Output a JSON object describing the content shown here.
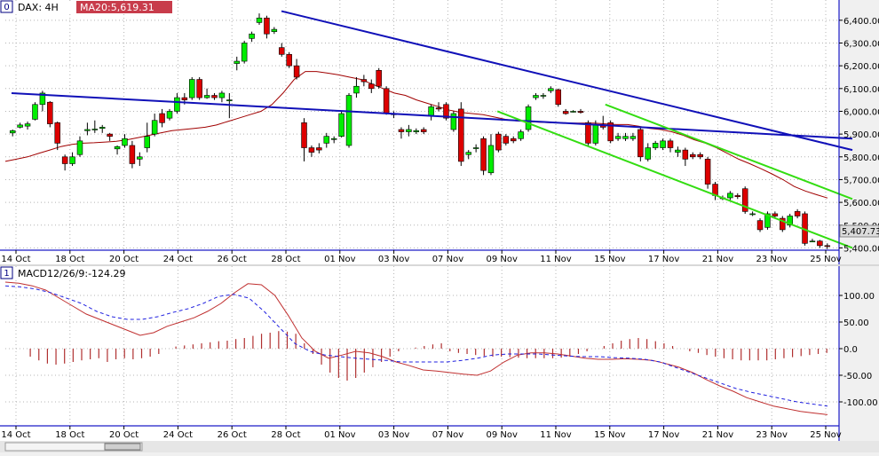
{
  "colors": {
    "background": "#ffffff",
    "frame": "#1c1cc8",
    "grid": "#b4b4b4",
    "bull": "#00ee00",
    "bear": "#dd0000",
    "wick": "#000000",
    "ma_line": "#a00000",
    "channel_blue": "#1010b8",
    "channel_green": "#33dd11",
    "macd_line": "#c03030",
    "signal_line": "#2020e0",
    "histogram": "#b03030",
    "label_badge": "#c83c4b",
    "last_price_badge": "#dcdcdc"
  },
  "price_pane": {
    "index": "0",
    "symbol_label": "DAX: 4H",
    "indicator_label": "MA20:5,619.31",
    "last_price_label": "5,407.73",
    "y_ticks": [
      "6,400.00",
      "6,300.00",
      "6,200.00",
      "6,100.00",
      "6,000.00",
      "5,900.00",
      "5,800.00",
      "5,700.00",
      "5,600.00",
      "5,500.00",
      "5,400.00"
    ]
  },
  "macd_pane": {
    "index": "1",
    "indicator_label": "MACD12/26/9:-124.29",
    "y_ticks": [
      "100.00",
      "50.00",
      "0.0",
      "-50.00",
      "-100.00"
    ]
  },
  "x_ticks": [
    "14 Oct",
    "18 Oct",
    "20 Oct",
    "24 Oct",
    "26 Oct",
    "28 Oct",
    "01 Nov",
    "03 Nov",
    "07 Nov",
    "09 Nov",
    "11 Nov",
    "15 Nov",
    "17 Nov",
    "21 Nov",
    "23 Nov",
    "25 Nov"
  ],
  "chart_data": [
    {
      "type": "candlestick",
      "title": "DAX: 4H",
      "indicator": "MA20:5,619.31",
      "x_ticks": [
        "14 Oct",
        "18 Oct",
        "20 Oct",
        "24 Oct",
        "26 Oct",
        "28 Oct",
        "01 Nov",
        "03 Nov",
        "07 Nov",
        "09 Nov",
        "11 Nov",
        "15 Nov",
        "17 Nov",
        "21 Nov",
        "23 Nov",
        "25 Nov"
      ],
      "ylim": [
        5390,
        6450
      ],
      "grid": true,
      "last_price": 5407.73,
      "candles": [
        [
          5905,
          5915,
          5890,
          5920
        ],
        [
          5930,
          5940,
          5925,
          5950
        ],
        [
          5935,
          5945,
          5920,
          5955
        ],
        [
          5965,
          6030,
          5960,
          6040
        ],
        [
          6030,
          6080,
          6000,
          6090
        ],
        [
          6040,
          5945,
          5930,
          6045
        ],
        [
          5950,
          5860,
          5830,
          5955
        ],
        [
          5800,
          5770,
          5740,
          5810
        ],
        [
          5770,
          5800,
          5760,
          5820
        ],
        [
          5810,
          5870,
          5800,
          5890
        ],
        [
          5915,
          5920,
          5895,
          5950
        ],
        [
          5920,
          5922,
          5905,
          5960
        ],
        [
          5925,
          5930,
          5905,
          5940
        ],
        [
          5900,
          5890,
          5870,
          5905
        ],
        [
          5835,
          5845,
          5810,
          5850
        ],
        [
          5850,
          5880,
          5840,
          5900
        ],
        [
          5850,
          5770,
          5750,
          5870
        ],
        [
          5790,
          5800,
          5760,
          5820
        ],
        [
          5840,
          5890,
          5820,
          5950
        ],
        [
          5900,
          5960,
          5890,
          5990
        ],
        [
          5990,
          5950,
          5930,
          6010
        ],
        [
          5970,
          6000,
          5960,
          6010
        ],
        [
          6000,
          6060,
          5990,
          6080
        ],
        [
          6060,
          6050,
          6030,
          6080
        ],
        [
          6060,
          6140,
          6050,
          6150
        ],
        [
          6140,
          6060,
          6050,
          6150
        ],
        [
          6060,
          6070,
          6055,
          6100
        ],
        [
          6070,
          6060,
          6050,
          6080
        ],
        [
          6060,
          6080,
          6040,
          6090
        ],
        [
          6050,
          6050,
          5970,
          6080
        ],
        [
          6210,
          6220,
          6180,
          6240
        ],
        [
          6220,
          6300,
          6210,
          6310
        ],
        [
          6320,
          6340,
          6305,
          6350
        ],
        [
          6390,
          6410,
          6380,
          6430
        ],
        [
          6410,
          6340,
          6320,
          6420
        ],
        [
          6350,
          6360,
          6340,
          6370
        ],
        [
          6280,
          6250,
          6240,
          6300
        ],
        [
          6250,
          6200,
          6190,
          6260
        ],
        [
          6200,
          6150,
          6140,
          6230
        ],
        [
          5950,
          5840,
          5780,
          5970
        ],
        [
          5840,
          5820,
          5800,
          5850
        ],
        [
          5840,
          5830,
          5815,
          5860
        ],
        [
          5860,
          5890,
          5840,
          5905
        ],
        [
          5880,
          5880,
          5860,
          5890
        ],
        [
          5890,
          5990,
          5885,
          6000
        ],
        [
          5850,
          6070,
          5840,
          6080
        ],
        [
          6080,
          6110,
          6060,
          6150
        ],
        [
          6140,
          6130,
          6110,
          6160
        ],
        [
          6120,
          6100,
          6080,
          6140
        ],
        [
          6180,
          6110,
          6100,
          6190
        ],
        [
          6100,
          5990,
          5985,
          6110
        ],
        [
          5985,
          5990,
          5970,
          6000
        ],
        [
          5920,
          5910,
          5880,
          5930
        ],
        [
          5910,
          5920,
          5890,
          5940
        ],
        [
          5910,
          5915,
          5900,
          5925
        ],
        [
          5920,
          5910,
          5900,
          5930
        ],
        [
          5980,
          6020,
          5960,
          6030
        ],
        [
          6015,
          6010,
          6000,
          6040
        ],
        [
          6030,
          5970,
          5960,
          6040
        ],
        [
          5920,
          5990,
          5910,
          6000
        ],
        [
          6010,
          5780,
          5760,
          6040
        ],
        [
          5810,
          5820,
          5790,
          5830
        ],
        [
          5840,
          5840,
          5820,
          5855
        ],
        [
          5880,
          5740,
          5720,
          5890
        ],
        [
          5730,
          5850,
          5720,
          5900
        ],
        [
          5900,
          5830,
          5820,
          5910
        ],
        [
          5890,
          5860,
          5850,
          5900
        ],
        [
          5880,
          5870,
          5860,
          5890
        ],
        [
          5880,
          5910,
          5870,
          5920
        ],
        [
          5920,
          6020,
          5910,
          6030
        ],
        [
          6060,
          6070,
          6050,
          6080
        ],
        [
          6070,
          6070,
          6055,
          6080
        ],
        [
          6090,
          6100,
          6080,
          6110
        ],
        [
          6095,
          6030,
          6020,
          6100
        ],
        [
          6000,
          5990,
          5985,
          6010
        ],
        [
          6000,
          6000,
          5995,
          6005
        ],
        [
          6000,
          5995,
          5990,
          6010
        ],
        [
          5950,
          5860,
          5850,
          5960
        ],
        [
          5860,
          5940,
          5850,
          5960
        ],
        [
          5940,
          5930,
          5920,
          5980
        ],
        [
          5950,
          5870,
          5860,
          5960
        ],
        [
          5880,
          5890,
          5870,
          5905
        ],
        [
          5880,
          5890,
          5870,
          5905
        ],
        [
          5880,
          5890,
          5870,
          5905
        ],
        [
          5920,
          5800,
          5780,
          5930
        ],
        [
          5790,
          5840,
          5780,
          5860
        ],
        [
          5840,
          5860,
          5830,
          5870
        ],
        [
          5840,
          5870,
          5830,
          5880
        ],
        [
          5870,
          5840,
          5820,
          5880
        ],
        [
          5820,
          5830,
          5800,
          5845
        ],
        [
          5830,
          5790,
          5760,
          5840
        ],
        [
          5810,
          5800,
          5790,
          5820
        ],
        [
          5810,
          5800,
          5790,
          5820
        ],
        [
          5790,
          5680,
          5660,
          5800
        ],
        [
          5680,
          5630,
          5610,
          5690
        ],
        [
          5620,
          5620,
          5610,
          5630
        ],
        [
          5620,
          5640,
          5610,
          5650
        ],
        [
          5630,
          5625,
          5615,
          5640
        ],
        [
          5660,
          5560,
          5550,
          5670
        ],
        [
          5550,
          5550,
          5540,
          5560
        ],
        [
          5520,
          5480,
          5470,
          5530
        ],
        [
          5490,
          5550,
          5480,
          5560
        ],
        [
          5550,
          5540,
          5530,
          5560
        ],
        [
          5530,
          5480,
          5470,
          5540
        ],
        [
          5500,
          5540,
          5490,
          5550
        ],
        [
          5560,
          5540,
          5530,
          5570
        ],
        [
          5550,
          5420,
          5410,
          5560
        ],
        [
          5430,
          5430,
          5425,
          5440
        ],
        [
          5430,
          5410,
          5400,
          5435
        ],
        [
          5410,
          5408,
          5395,
          5420
        ]
      ],
      "ma20": [
        5780,
        5790,
        5800,
        5815,
        5830,
        5845,
        5855,
        5860,
        5862,
        5865,
        5868,
        5875,
        5885,
        5895,
        5905,
        5915,
        5920,
        5925,
        5930,
        5940,
        5955,
        5970,
        5985,
        6000,
        6030,
        6080,
        6140,
        6175,
        6175,
        6168,
        6160,
        6150,
        6140,
        6120,
        6100,
        6080,
        6070,
        6050,
        6035,
        6020,
        6005,
        5995,
        5990,
        5985,
        5975,
        5965,
        5958,
        5955,
        5952,
        5950,
        5950,
        5948,
        5948,
        5948,
        5945,
        5942,
        5942,
        5935,
        5925,
        5920,
        5910,
        5895,
        5875,
        5860,
        5840,
        5815,
        5790,
        5770,
        5748,
        5725,
        5700,
        5670,
        5650,
        5634,
        5619
      ],
      "channels": [
        {
          "color": "blue",
          "from": [
            "14 Oct",
            6080
          ],
          "to": [
            "25 Nov",
            5880
          ]
        },
        {
          "color": "blue",
          "from": [
            "28 Oct",
            6440
          ],
          "to": [
            "25 Nov",
            5830
          ]
        },
        {
          "color": "green",
          "from": [
            "09 Nov",
            6000
          ],
          "to": [
            "25 Nov",
            5400
          ]
        },
        {
          "color": "green",
          "from": [
            "15 Nov",
            6030
          ],
          "to": [
            "25 Nov",
            5615
          ]
        }
      ]
    },
    {
      "type": "line",
      "title": "MACD12/26/9:-124.29",
      "x_ticks": [
        "14 Oct",
        "18 Oct",
        "20 Oct",
        "24 Oct",
        "26 Oct",
        "28 Oct",
        "01 Nov",
        "03 Nov",
        "07 Nov",
        "09 Nov",
        "11 Nov",
        "15 Nov",
        "17 Nov",
        "21 Nov",
        "23 Nov",
        "25 Nov"
      ],
      "ylim": [
        -145,
        135
      ],
      "grid": true,
      "series": [
        {
          "values": [
            125,
            123,
            118,
            110,
            95,
            80,
            65,
            55,
            45,
            35,
            25,
            30,
            42,
            50,
            58,
            70,
            85,
            105,
            122,
            120,
            100,
            62,
            20,
            -5,
            -18,
            -12,
            -5,
            -8,
            -15,
            -25,
            -32,
            -40,
            -42,
            -45,
            -48,
            -50,
            -42,
            -25,
            -12,
            -8,
            -8,
            -10,
            -14,
            -18,
            -20,
            -20,
            -19,
            -20,
            -22,
            -28,
            -35,
            -45,
            -58,
            -70,
            -80,
            -92,
            -100,
            -108,
            -113,
            -118,
            -121,
            -124
          ]
        },
        {
          "values": [
            118,
            116,
            112,
            105,
            95,
            85,
            70,
            60,
            55,
            55,
            60,
            68,
            75,
            85,
            98,
            102,
            95,
            70,
            40,
            10,
            -5,
            -12,
            -15,
            -18,
            -20,
            -22,
            -25,
            -25,
            -25,
            -25,
            -22,
            -18,
            -12,
            -10,
            -10,
            -10,
            -12,
            -14,
            -15,
            -15,
            -17,
            -18,
            -20,
            -25,
            -35,
            -45,
            -55,
            -65,
            -75,
            -82,
            -88,
            -94,
            -100,
            -104,
            -108
          ]
        }
      ],
      "histogram": [
        0,
        0,
        -15,
        -22,
        -28,
        -30,
        -28,
        -25,
        -22,
        -20,
        -18,
        -25,
        -20,
        -18,
        -20,
        -18,
        -15,
        -10,
        0,
        4,
        6,
        8,
        10,
        12,
        14,
        15,
        18,
        20,
        24,
        28,
        30,
        33,
        32,
        28,
        10,
        -10,
        -30,
        -45,
        -55,
        -60,
        -55,
        -45,
        -35,
        -25,
        -15,
        -5,
        0,
        2,
        5,
        8,
        10,
        -5,
        -8,
        -10,
        -12,
        -14,
        -15,
        -15,
        -16,
        -17,
        -18,
        -18,
        -18,
        -18,
        -17,
        -15,
        -10,
        -5,
        0,
        5,
        10,
        15,
        18,
        20,
        18,
        14,
        10,
        5,
        0,
        -5,
        -8,
        -12,
        -15,
        -18,
        -20,
        -22,
        -22,
        -22,
        -22,
        -20,
        -18,
        -16,
        -14,
        -12,
        -10,
        -8
      ]
    }
  ]
}
